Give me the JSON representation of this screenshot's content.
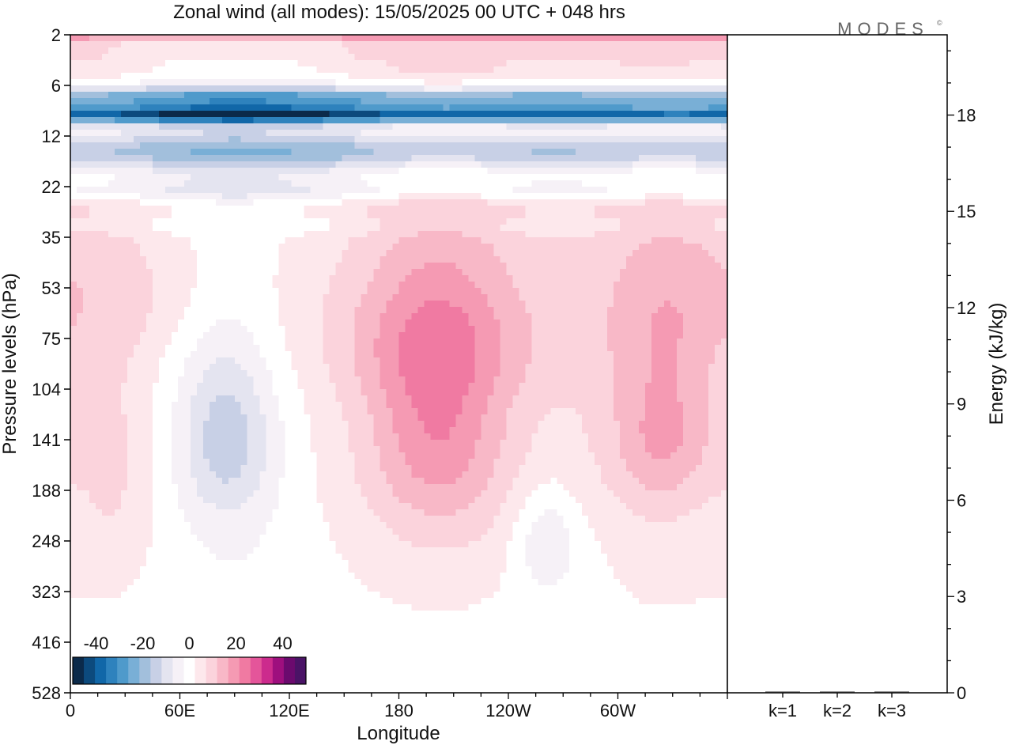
{
  "header": {
    "title": "Zonal wind (all modes):  15/05/2025  00 UTC  + 048 hrs",
    "logo": "MODES",
    "logo_mark": "©"
  },
  "colors": {
    "palette": [
      "#0b2a4a",
      "#0c4a7d",
      "#1167a8",
      "#2e82bd",
      "#4f9acb",
      "#79afd6",
      "#a2bfdc",
      "#c8d0e6",
      "#e4e4f0",
      "#f6f1f7",
      "#ffffff",
      "#fde8ec",
      "#fbd3dc",
      "#f8b8c7",
      "#f59ab3",
      "#f07aa2",
      "#e4559a",
      "#cc2b8d",
      "#9e0f7e",
      "#6b0a6e",
      "#4a1366"
    ],
    "background_fill": "#f6f1f7"
  },
  "chart_data": [
    {
      "type": "heatmap",
      "title": "Zonal wind (all modes):  15/05/2025  00 UTC  + 048 hrs",
      "xlabel": "Longitude",
      "ylabel": "Pressure levels (hPa)",
      "x_ticks": [
        "0",
        "60E",
        "120E",
        "180",
        "120W",
        "60W"
      ],
      "x_tick_values": [
        0,
        60,
        120,
        180,
        240,
        300
      ],
      "xlim": [
        0,
        360
      ],
      "y_ticks": [
        "2",
        "6",
        "12",
        "22",
        "35",
        "53",
        "75",
        "104",
        "141",
        "188",
        "248",
        "323",
        "416",
        "528"
      ],
      "colorbar": {
        "ticks": [
          "-40",
          "-20",
          "0",
          "20",
          "40"
        ],
        "range": [
          -50,
          50
        ],
        "n_colors": 21
      },
      "features": [
        {
          "lon": 180,
          "level": 2,
          "value": 15,
          "wlon": 400,
          "wlev": 0.4
        },
        {
          "lon": 180,
          "level": 3.5,
          "value": 3,
          "wlon": 400,
          "wlev": 0.3
        },
        {
          "lon": 180,
          "level": 7.5,
          "value": -30,
          "wlon": 400,
          "wlev": 1.0
        },
        {
          "lon": 180,
          "level": 9.5,
          "value": -38,
          "wlon": 400,
          "wlev": 0.7
        },
        {
          "lon": 90,
          "level": 9.5,
          "value": -6,
          "wlon": 40,
          "wlev": 0.8
        },
        {
          "lon": 180,
          "level": 15,
          "value": -24,
          "wlon": 400,
          "wlev": 3.0
        },
        {
          "lon": 180,
          "level": 23,
          "value": -10,
          "wlon": 400,
          "wlev": 2.0
        },
        {
          "lon": 180,
          "level": 32,
          "value": -3,
          "wlon": 400,
          "wlev": 1.8
        },
        {
          "lon": 180,
          "level": 70,
          "value": 3,
          "wlon": 400,
          "wlev": 200
        },
        {
          "lon": 200,
          "level": 75,
          "value": 8,
          "wlon": 45,
          "wlev": 25
        },
        {
          "lon": 200,
          "level": 130,
          "value": 12,
          "wlon": 25,
          "wlev": 60
        },
        {
          "lon": 205,
          "level": 130,
          "value": 7,
          "wlon": 40,
          "wlev": 150
        },
        {
          "lon": 325,
          "level": 135,
          "value": 11,
          "wlon": 20,
          "wlev": 45
        },
        {
          "lon": 320,
          "level": 100,
          "value": 5,
          "wlon": 40,
          "wlev": 200
        },
        {
          "lon": 25,
          "level": 180,
          "value": 5,
          "wlon": 15,
          "wlev": 100
        },
        {
          "lon": 85,
          "level": 140,
          "value": -14,
          "wlon": 18,
          "wlev": 50
        },
        {
          "lon": 90,
          "level": 180,
          "value": -4,
          "wlon": 30,
          "wlev": 150
        },
        {
          "lon": 260,
          "level": 245,
          "value": -8,
          "wlon": 12,
          "wlev": 45
        },
        {
          "lon": 270,
          "level": 290,
          "value": -3,
          "wlon": 22,
          "wlev": 100
        },
        {
          "lon": 330,
          "level": 60,
          "value": 5,
          "wlon": 30,
          "wlev": 25
        },
        {
          "lon": 40,
          "level": 55,
          "value": 4,
          "wlon": 50,
          "wlev": 20
        },
        {
          "lon": 180,
          "level": 450,
          "value": -1,
          "wlon": 400,
          "wlev": 200
        }
      ]
    },
    {
      "type": "bar",
      "ylabel": "Energy (kJ/kg)",
      "categories": [
        "k=1",
        "k=2",
        "k=3"
      ],
      "values": [
        0.02,
        0.02,
        0.01
      ],
      "ylim": [
        0,
        20.5
      ],
      "y_ticks": [
        "0",
        "3",
        "6",
        "9",
        "12",
        "15",
        "18"
      ],
      "y_tick_values": [
        0,
        3,
        6,
        9,
        12,
        15,
        18
      ]
    }
  ]
}
